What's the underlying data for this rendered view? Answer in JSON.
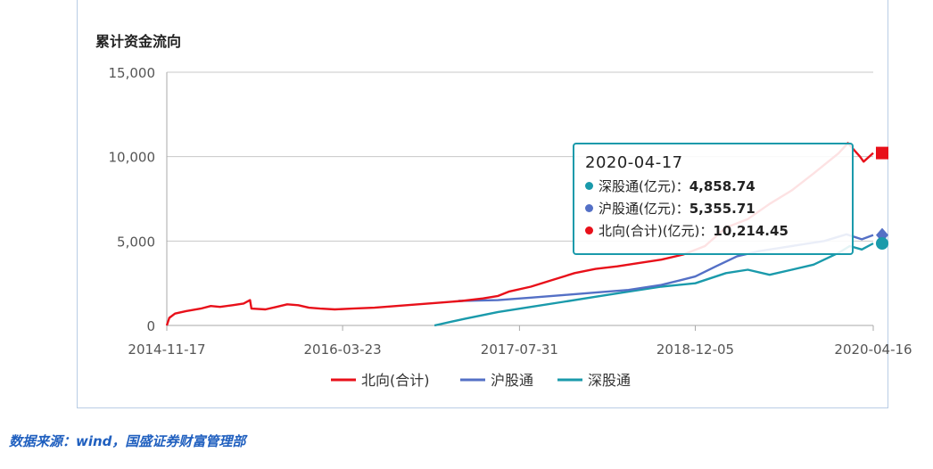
{
  "chart_data": {
    "type": "line",
    "title": "累计资金流向",
    "ylim": [
      0,
      15000
    ],
    "yticks": [
      "0",
      "5,000",
      "10,000",
      "15,000"
    ],
    "ytick_values": [
      0,
      5000,
      10000,
      15000
    ],
    "xticks": [
      "2014-11-17",
      "2016-03-23",
      "2017-07-31",
      "2018-12-05",
      "2020-04-16"
    ],
    "xtick_dates": [
      "2014-11-17",
      "2016-03-23",
      "2017-07-31",
      "2018-12-05",
      "2020-04-16"
    ],
    "grid": true,
    "legend_position": "bottom",
    "series": [
      {
        "name": "北向(合计)",
        "color": "#e8101a",
        "marker": "square",
        "points": [
          [
            "2014-11-17",
            0
          ],
          [
            "2014-11-24",
            450
          ],
          [
            "2014-12-10",
            700
          ],
          [
            "2015-01-10",
            850
          ],
          [
            "2015-02-20",
            1000
          ],
          [
            "2015-03-20",
            1150
          ],
          [
            "2015-04-15",
            1100
          ],
          [
            "2015-05-20",
            1200
          ],
          [
            "2015-06-20",
            1300
          ],
          [
            "2015-07-08",
            1500
          ],
          [
            "2015-07-12",
            1000
          ],
          [
            "2015-08-20",
            950
          ],
          [
            "2015-09-20",
            1100
          ],
          [
            "2015-10-20",
            1250
          ],
          [
            "2015-11-20",
            1200
          ],
          [
            "2015-12-20",
            1050
          ],
          [
            "2016-01-20",
            1000
          ],
          [
            "2016-03-01",
            950
          ],
          [
            "2016-04-20",
            1000
          ],
          [
            "2016-06-20",
            1050
          ],
          [
            "2016-08-20",
            1150
          ],
          [
            "2016-10-20",
            1250
          ],
          [
            "2016-12-20",
            1350
          ],
          [
            "2017-02-20",
            1450
          ],
          [
            "2017-04-20",
            1600
          ],
          [
            "2017-06-01",
            1750
          ],
          [
            "2017-07-01",
            2000
          ],
          [
            "2017-09-01",
            2300
          ],
          [
            "2017-11-01",
            2700
          ],
          [
            "2018-01-01",
            3100
          ],
          [
            "2018-03-01",
            3350
          ],
          [
            "2018-05-01",
            3500
          ],
          [
            "2018-07-01",
            3700
          ],
          [
            "2018-09-01",
            3900
          ],
          [
            "2018-11-01",
            4200
          ],
          [
            "2019-01-01",
            4700
          ],
          [
            "2019-03-01",
            5800
          ],
          [
            "2019-05-01",
            6300
          ],
          [
            "2019-07-01",
            7200
          ],
          [
            "2019-09-01",
            8000
          ],
          [
            "2019-11-01",
            9000
          ],
          [
            "2020-01-10",
            10200
          ],
          [
            "2020-02-05",
            10800
          ],
          [
            "2020-03-10",
            10000
          ],
          [
            "2020-03-20",
            9700
          ],
          [
            "2020-04-16",
            10214.45
          ]
        ]
      },
      {
        "name": "沪股通",
        "color": "#5470c6",
        "marker": "diamond",
        "points": [
          [
            "2017-02-10",
            1450
          ],
          [
            "2017-06-01",
            1500
          ],
          [
            "2017-09-01",
            1650
          ],
          [
            "2017-12-01",
            1800
          ],
          [
            "2018-03-01",
            1950
          ],
          [
            "2018-06-01",
            2100
          ],
          [
            "2018-09-01",
            2400
          ],
          [
            "2018-12-05",
            2900
          ],
          [
            "2019-02-01",
            3500
          ],
          [
            "2019-04-01",
            4100
          ],
          [
            "2019-06-01",
            4400
          ],
          [
            "2019-08-01",
            4600
          ],
          [
            "2019-10-01",
            4800
          ],
          [
            "2019-12-01",
            5000
          ],
          [
            "2020-02-01",
            5400
          ],
          [
            "2020-03-15",
            5100
          ],
          [
            "2020-04-16",
            5355.71
          ]
        ]
      },
      {
        "name": "深股通",
        "color": "#1a9aab",
        "marker": "circle",
        "points": [
          [
            "2016-12-05",
            0
          ],
          [
            "2017-03-01",
            400
          ],
          [
            "2017-06-01",
            800
          ],
          [
            "2017-09-01",
            1100
          ],
          [
            "2017-12-01",
            1400
          ],
          [
            "2018-03-01",
            1700
          ],
          [
            "2018-06-01",
            2000
          ],
          [
            "2018-09-01",
            2300
          ],
          [
            "2018-12-05",
            2500
          ],
          [
            "2019-03-01",
            3100
          ],
          [
            "2019-05-01",
            3300
          ],
          [
            "2019-07-01",
            3000
          ],
          [
            "2019-09-01",
            3300
          ],
          [
            "2019-11-01",
            3600
          ],
          [
            "2020-01-10",
            4300
          ],
          [
            "2020-02-10",
            4700
          ],
          [
            "2020-03-15",
            4500
          ],
          [
            "2020-04-16",
            4858.74
          ]
        ]
      }
    ]
  },
  "tooltip": {
    "date": "2020-04-17",
    "rows": [
      {
        "label": "深股通(亿元)：",
        "value": "4,858.74",
        "color": "#1a9aab"
      },
      {
        "label": "沪股通(亿元)：",
        "value": "5,355.71",
        "color": "#5470c6"
      },
      {
        "label": "北向(合计)(亿元)：",
        "value": "10,214.45",
        "color": "#e8101a"
      }
    ]
  },
  "source": "数据来源：wind，国盛证券财富管理部"
}
